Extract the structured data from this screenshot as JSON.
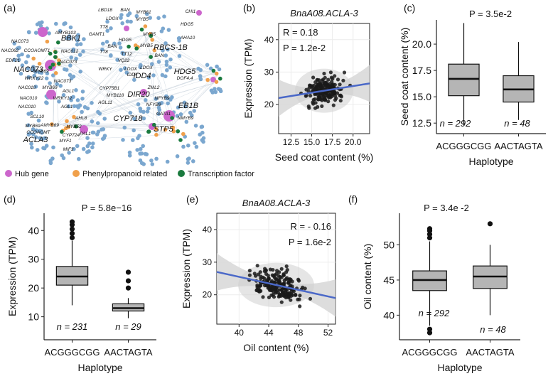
{
  "panel_labels": [
    "(a)",
    "(b)",
    "(c)",
    "(d)",
    "(e)",
    "(f)"
  ],
  "chart_data": [
    {
      "panel": "(a)",
      "type": "network",
      "legend": [
        {
          "label": "Hub gene",
          "color": "#cc66cc"
        },
        {
          "label": "Phenylpropanoid related",
          "color": "#f0a04b"
        },
        {
          "label": "Transcription factor",
          "color": "#1a7a3e"
        }
      ],
      "node_color": "#7ba7cf",
      "labels": [
        {
          "text": "NAC073",
          "big": true
        },
        {
          "text": "BBK1",
          "big": true
        },
        {
          "text": "ACLA3",
          "big": true
        },
        {
          "text": "RBCS-1B",
          "big": true
        },
        {
          "text": "HDG5",
          "big": true
        },
        {
          "text": "EB1B",
          "big": true
        },
        {
          "text": "IDD4",
          "big": true
        },
        {
          "text": "DIR20",
          "big": true
        },
        {
          "text": "CYP718",
          "big": true
        },
        {
          "text": "STP5",
          "big": true
        },
        {
          "text": "AMYB103"
        },
        {
          "text": "NAC073"
        },
        {
          "text": "NAC062"
        },
        {
          "text": "CCOAOMT1"
        },
        {
          "text": "NAC012"
        },
        {
          "text": "EDF21"
        },
        {
          "text": "NAC073"
        },
        {
          "text": "MYB69"
        },
        {
          "text": "WRKY22"
        },
        {
          "text": "NAC073"
        },
        {
          "text": "NAC010"
        },
        {
          "text": "MYB69"
        },
        {
          "text": "AGL1"
        },
        {
          "text": "NAC010"
        },
        {
          "text": "WRKY12"
        },
        {
          "text": "AGL1"
        },
        {
          "text": "NAC010"
        },
        {
          "text": "SCL10"
        },
        {
          "text": "AHL8"
        },
        {
          "text": "MYB69"
        },
        {
          "text": "AMYB69"
        },
        {
          "text": "MYB52"
        },
        {
          "text": "CYP724"
        },
        {
          "text": "PAL1"
        },
        {
          "text": "CCOAOMT"
        },
        {
          "text": "MYF1"
        },
        {
          "text": "MIF3"
        },
        {
          "text": "LBD18"
        },
        {
          "text": "BAN"
        },
        {
          "text": "LDOX"
        },
        {
          "text": "MYB61"
        },
        {
          "text": "MYB5"
        },
        {
          "text": "CHI1"
        },
        {
          "text": "HDG5"
        },
        {
          "text": "TT8"
        },
        {
          "text": "GAMT1"
        },
        {
          "text": "HDG5"
        },
        {
          "text": "MYB5"
        },
        {
          "text": "AHA10"
        },
        {
          "text": "BAN"
        },
        {
          "text": "TT8"
        },
        {
          "text": "TT12"
        },
        {
          "text": "VQ22"
        },
        {
          "text": "BAN"
        },
        {
          "text": "LDOX"
        },
        {
          "text": "MYB5"
        },
        {
          "text": "WRKY"
        },
        {
          "text": "LDOX"
        },
        {
          "text": "IDD4"
        },
        {
          "text": "DOF4.4"
        },
        {
          "text": "CYP75B1"
        },
        {
          "text": "MYB118"
        },
        {
          "text": "ZML2"
        },
        {
          "text": "AGL11"
        },
        {
          "text": "NFYB9"
        },
        {
          "text": "NFYB9"
        },
        {
          "text": "GATA1"
        },
        {
          "text": "NMYB9"
        }
      ]
    },
    {
      "panel": "(b)",
      "type": "scatter",
      "title": "BnaA08.ACLA-3",
      "xlabel": "Seed coat content (%)",
      "ylabel": "Expression (TPM)",
      "xlim": [
        11,
        22
      ],
      "ylim": [
        11,
        45
      ],
      "xticks": [
        "12.5",
        "15.0",
        "17.5",
        "20.0"
      ],
      "yticks": [
        "20",
        "30",
        "40"
      ],
      "stats": [
        "R = 0.18",
        "P = 1.2e-2"
      ],
      "fit": {
        "x": [
          11.0,
          22.0
        ],
        "y": [
          22.0,
          26.5
        ]
      },
      "n_points": 190
    },
    {
      "panel": "(c)",
      "type": "box",
      "p_text": "P = 3.5e-2",
      "xlabel": "Haplotype",
      "ylabel": "Seed coat content (%)",
      "ylim": [
        11.5,
        22.3
      ],
      "yticks": [
        "12.5",
        "15.0",
        "17.5",
        "20.0"
      ],
      "categories": [
        "ACGGGCGG",
        "AACTAGTA"
      ],
      "boxes": [
        {
          "min": 12.3,
          "q1": 15.1,
          "median": 16.7,
          "q3": 18.1,
          "max": 22.0,
          "outliers": [],
          "n_text": "n = 292"
        },
        {
          "min": 12.8,
          "q1": 14.5,
          "median": 15.7,
          "q3": 17.0,
          "max": 20.2,
          "outliers": [],
          "n_text": "n = 48"
        }
      ]
    },
    {
      "panel": "(d)",
      "type": "box",
      "p_text": "P = 5.8e−16",
      "xlabel": "Haplotype",
      "ylabel": "Expression (TPM)",
      "ylim": [
        2,
        46
      ],
      "yticks": [
        "10",
        "20",
        "30",
        "40"
      ],
      "categories": [
        "ACGGGCGG",
        "AACTAGTA"
      ],
      "boxes": [
        {
          "min": 14,
          "q1": 21,
          "median": 24,
          "q3": 27.5,
          "max": 36.5,
          "outliers": [
            37.5,
            39,
            40.5,
            42,
            43
          ],
          "n_text": "n = 231"
        },
        {
          "min": 9.5,
          "q1": 12,
          "median": 13,
          "q3": 14.5,
          "max": 16.5,
          "outliers": [
            20,
            22.5,
            25.5
          ],
          "n_text": "n = 29"
        }
      ]
    },
    {
      "panel": "(e)",
      "type": "scatter",
      "title": "BnaA08.ACLA-3",
      "xlabel": "Oil content (%)",
      "ylabel": "Expression (TPM)",
      "xlim": [
        37,
        53
      ],
      "ylim": [
        11,
        45
      ],
      "xticks": [
        "40",
        "44",
        "48",
        "52"
      ],
      "yticks": [
        "20",
        "30",
        "40"
      ],
      "stats": [
        "R = - 0.16",
        "P = 1.6e-2"
      ],
      "fit": {
        "x": [
          37.0,
          53.0
        ],
        "y": [
          27.0,
          19.0
        ]
      },
      "n_points": 200
    },
    {
      "panel": "(f)",
      "type": "box",
      "p_text": "P = 3.4e -2",
      "xlabel": "Haplotype",
      "ylabel": "Oil content (%)",
      "ylim": [
        36.5,
        54.5
      ],
      "yticks": [
        "40",
        "45",
        "50"
      ],
      "categories": [
        "ACGGGCGG",
        "AACTAGTA"
      ],
      "boxes": [
        {
          "min": 38.5,
          "q1": 43.5,
          "median": 45.0,
          "q3": 46.3,
          "max": 50.5,
          "outliers": [
            37.5,
            38.0,
            51.0,
            51.5,
            52.0,
            52.3
          ],
          "n_text": "n = 292"
        },
        {
          "min": 40.0,
          "q1": 43.8,
          "median": 45.5,
          "q3": 47.0,
          "max": 50.0,
          "outliers": [
            53.0
          ],
          "n_text": "n = 48"
        }
      ]
    }
  ]
}
